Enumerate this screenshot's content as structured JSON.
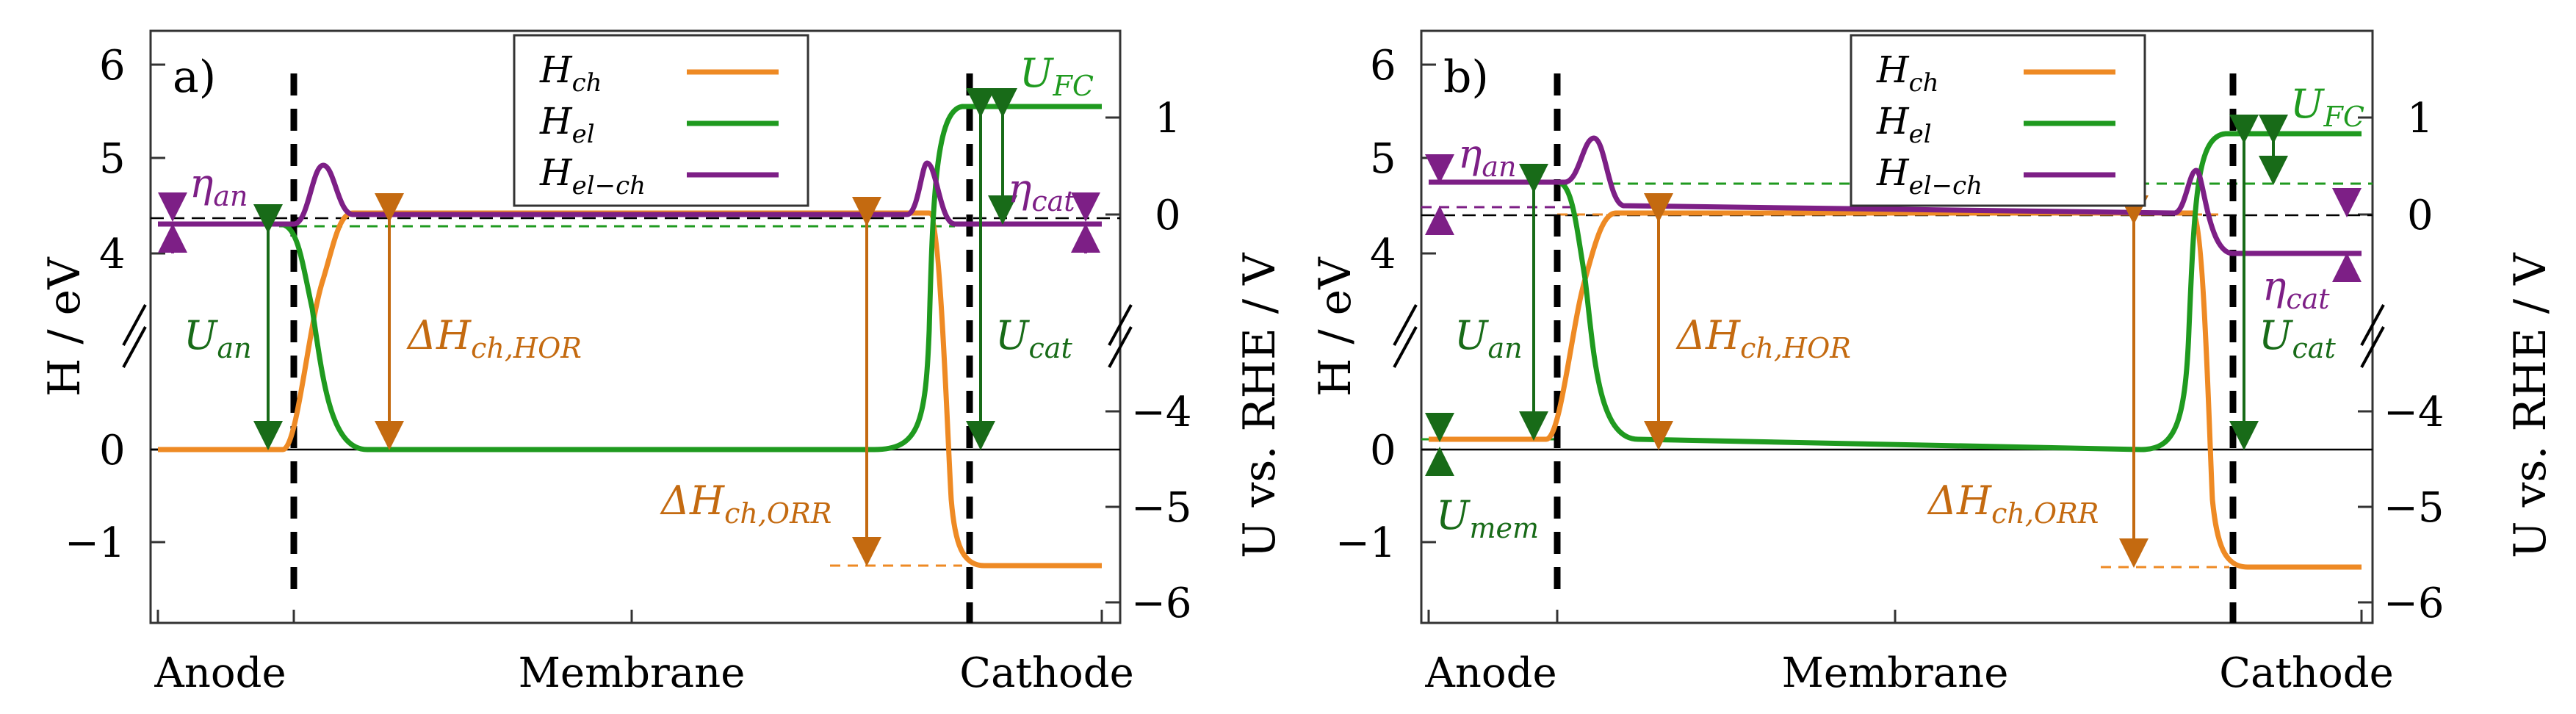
{
  "colors": {
    "orange": "#ee8a24",
    "green": "#1f9a1f",
    "purple": "#7d1f86",
    "darkorange": "#c46a10",
    "darkgreen": "#186b18",
    "black": "#000000"
  },
  "chart_data": [
    {
      "type": "line",
      "panel_label": "a)",
      "ylabel_left": "H / eV",
      "ylabel_right": "U vs. RHE / V",
      "x_categories": [
        "Anode",
        "Membrane",
        "Cathode"
      ],
      "left_ticks": [
        "6",
        "5",
        "4",
        "0",
        "−1"
      ],
      "right_ticks": [
        "1",
        "0",
        "−4",
        "−5",
        "−6"
      ],
      "legend": [
        {
          "base": "H",
          "sub": "ch"
        },
        {
          "base": "H",
          "sub": "el"
        },
        {
          "base": "H",
          "sub": "el−ch"
        }
      ],
      "annotations": {
        "eta_an": {
          "base": "η",
          "sub": "an"
        },
        "eta_cat": {
          "base": "η",
          "sub": "cat"
        },
        "U_an": {
          "base": "U",
          "sub": "an"
        },
        "U_cat": {
          "base": "U",
          "sub": "cat"
        },
        "U_FC": {
          "base": "U",
          "sub": "FC"
        },
        "dH_HOR": {
          "base": "ΔH",
          "sub": "ch,HOR"
        },
        "dH_ORR": {
          "base": "ΔH",
          "sub": "ch,ORR"
        }
      },
      "series": [
        {
          "name": "H_ch",
          "color": "orange",
          "x": [
            0,
            0.14,
            0.185,
            0.2,
            0.86,
            0.875,
            1.0
          ],
          "y": [
            0,
            0,
            4.45,
            4.45,
            4.45,
            -1.23,
            -1.23
          ]
        },
        {
          "name": "H_el",
          "color": "green",
          "x": [
            0,
            0.14,
            0.175,
            0.2,
            0.81,
            0.85,
            1.0
          ],
          "y": [
            4.3,
            4.3,
            0,
            0,
            0,
            5.55,
            5.55
          ]
        },
        {
          "name": "H_el-ch",
          "color": "purple",
          "x": [
            0,
            0.14,
            0.175,
            0.2,
            0.81,
            0.85,
            1.0
          ],
          "y": [
            4.3,
            4.3,
            4.95,
            4.4,
            4.4,
            4.95,
            4.3
          ]
        }
      ]
    },
    {
      "type": "line",
      "panel_label": "b)",
      "ylabel_left": "H / eV",
      "ylabel_right": "U vs. RHE / V",
      "x_categories": [
        "Anode",
        "Membrane",
        "Cathode"
      ],
      "left_ticks": [
        "6",
        "5",
        "4",
        "0",
        "−1"
      ],
      "right_ticks": [
        "1",
        "0",
        "−4",
        "−5",
        "−6"
      ],
      "legend": [
        {
          "base": "H",
          "sub": "ch"
        },
        {
          "base": "H",
          "sub": "el"
        },
        {
          "base": "H",
          "sub": "el−ch"
        }
      ],
      "annotations": {
        "eta_an": {
          "base": "η",
          "sub": "an"
        },
        "eta_cat": {
          "base": "η",
          "sub": "cat"
        },
        "U_an": {
          "base": "U",
          "sub": "an"
        },
        "U_cat": {
          "base": "U",
          "sub": "cat"
        },
        "U_FC": {
          "base": "U",
          "sub": "FC"
        },
        "U_mem": {
          "base": "U",
          "sub": "mem"
        },
        "dH_HOR": {
          "base": "ΔH",
          "sub": "ch,HOR"
        },
        "dH_ORR": {
          "base": "ΔH",
          "sub": "ch,ORR"
        }
      },
      "series": [
        {
          "name": "H_ch",
          "color": "orange",
          "x": [
            0,
            0.14,
            0.185,
            0.2,
            0.84,
            0.855,
            1.0
          ],
          "y": [
            0.15,
            0.15,
            4.45,
            4.45,
            4.4,
            -1.23,
            -1.23
          ]
        },
        {
          "name": "H_el",
          "color": "green",
          "x": [
            0,
            0.14,
            0.175,
            0.2,
            0.81,
            0.85,
            1.0
          ],
          "y": [
            4.8,
            4.8,
            0.15,
            0.1,
            0,
            5.3,
            5.3
          ]
        },
        {
          "name": "H_el-ch",
          "color": "purple",
          "x": [
            0,
            0.14,
            0.175,
            0.2,
            0.81,
            0.85,
            1.0
          ],
          "y": [
            4.8,
            4.8,
            5.25,
            4.55,
            4.45,
            4.9,
            4.05
          ]
        }
      ]
    }
  ]
}
